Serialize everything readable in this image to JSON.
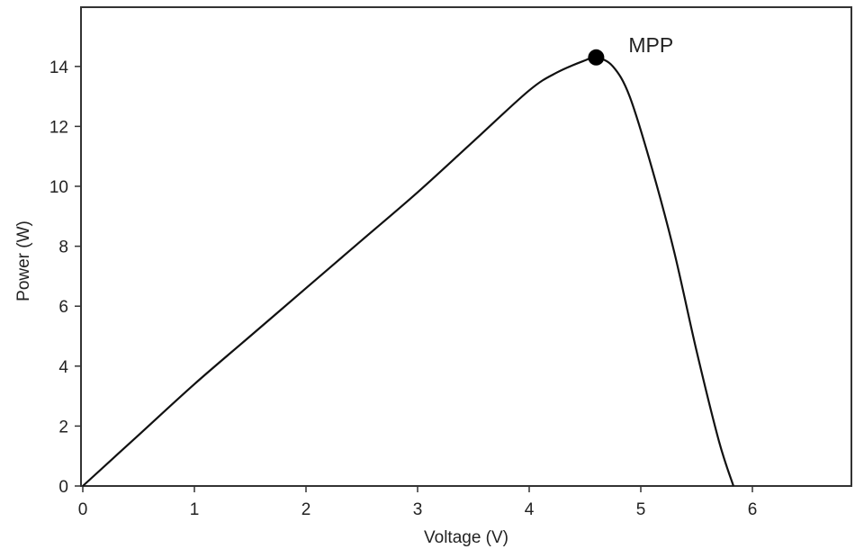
{
  "chart_data": {
    "type": "line",
    "title": "",
    "xlabel": "Voltage (V)",
    "ylabel": "Power (W)",
    "xlim": [
      0,
      6.8
    ],
    "ylim": [
      0,
      16
    ],
    "xticks": [
      0,
      1,
      2,
      3,
      4,
      5,
      6
    ],
    "yticks": [
      0,
      2,
      4,
      6,
      8,
      10,
      12,
      14
    ],
    "x_tick_labels": [
      "0",
      "1",
      "2",
      "3",
      "4",
      "5",
      "6"
    ],
    "y_tick_labels": [
      "0",
      "2",
      "4",
      "6",
      "8",
      "10",
      "12",
      "14"
    ],
    "grid": false,
    "legend": "none",
    "series": [
      {
        "color": "#111111",
        "x": [
          0,
          0.5,
          1.0,
          1.5,
          2.0,
          2.5,
          3.0,
          3.5,
          4.0,
          4.25,
          4.5,
          4.6,
          4.75,
          4.9,
          5.1,
          5.3,
          5.5,
          5.7,
          5.83
        ],
        "y": [
          0,
          1.7,
          3.4,
          5.0,
          6.6,
          8.2,
          9.8,
          11.5,
          13.2,
          13.8,
          14.2,
          14.3,
          14.0,
          13.0,
          10.6,
          7.8,
          4.5,
          1.5,
          0
        ]
      }
    ],
    "annotations": [
      {
        "label": "MPP",
        "x": 4.6,
        "y": 14.3
      }
    ]
  }
}
